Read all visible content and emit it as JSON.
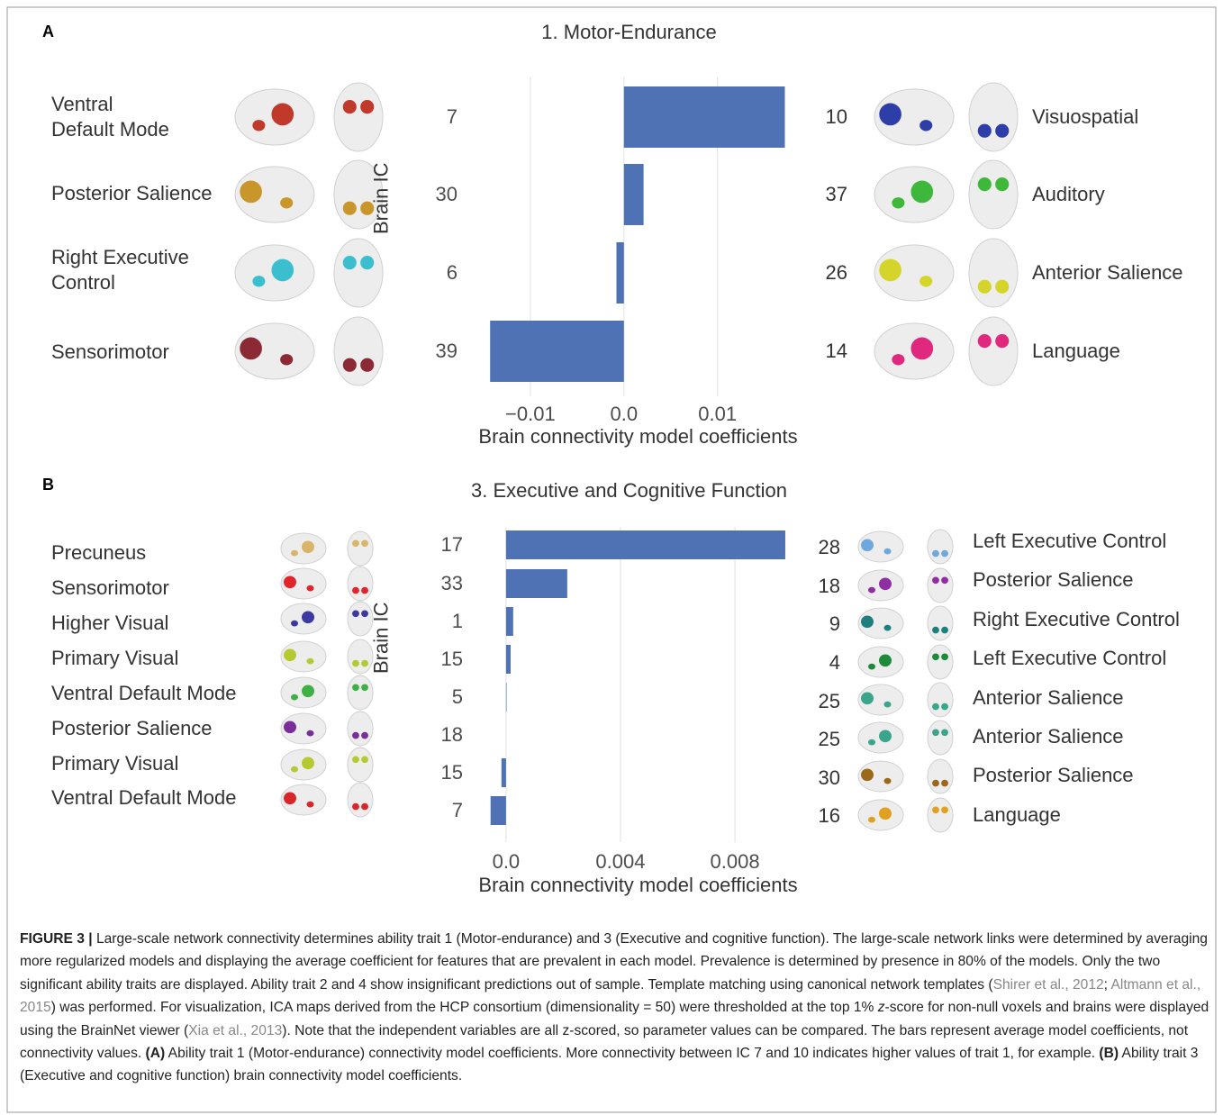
{
  "chart_data": [
    {
      "type": "bar",
      "orientation": "horizontal",
      "panel_label": "A",
      "title": "1. Motor-Endurance",
      "ylabel": "Brain IC",
      "xlabel": "Brain connectivity model coefficients",
      "categories": [
        "7",
        "30",
        "6",
        "39"
      ],
      "values": [
        0.0172,
        0.0021,
        -0.0008,
        -0.0143
      ],
      "color": "#4f72b5",
      "xlim": [
        -0.0174,
        0.0185
      ],
      "xticks": [
        {
          "value": -0.01,
          "label": "−0.01"
        },
        {
          "value": 0,
          "label": "0.0"
        },
        0.01
      ],
      "grid": true,
      "left_networks": [
        "Ventral\nDefault Mode",
        "Posterior Salience",
        "Right Executive\nControl",
        "Sensorimotor"
      ],
      "right_ics": [
        "10",
        "37",
        "26",
        "14"
      ],
      "right_networks": [
        "Visuospatial",
        "Auditory",
        "Anterior Salience",
        "Language"
      ]
    },
    {
      "type": "bar",
      "orientation": "horizontal",
      "panel_label": "B",
      "title": "3. Executive and Cognitive Function",
      "ylabel": "Brain IC",
      "xlabel": "Brain connectivity model coefficients",
      "categories": [
        "17",
        "33",
        "1",
        "15",
        "5",
        "18",
        "15",
        "7"
      ],
      "values": [
        0.00976,
        0.00214,
        0.00025,
        0.00016,
        2e-05,
        0,
        -0.00016,
        -0.00054
      ],
      "color": "#4f72b5",
      "xlim": [
        -0.00157,
        0.01017
      ],
      "xticks": [
        {
          "value": 0,
          "label": "0.0"
        },
        0.004,
        0.008
      ],
      "grid": true,
      "left_networks": [
        "Precuneus",
        "Sensorimotor",
        "Higher Visual",
        "Primary Visual",
        "Ventral Default Mode",
        "Posterior Salience",
        "Primary Visual",
        "Ventral Default Mode"
      ],
      "right_ics": [
        "28",
        "18",
        "9",
        "4",
        "25",
        "25",
        "30",
        "16"
      ],
      "right_networks": [
        "Left Executive Control",
        "Posterior Salience",
        "Right Executive Control",
        "Left Executive Control",
        "Anterior Salience",
        "Anterior Salience",
        "Posterior Salience",
        "Language"
      ]
    }
  ],
  "caption": {
    "parts": [
      "FIGURE 3 |",
      " Large-scale network connectivity determines ability trait 1 (Motor-endurance) and 3 (Executive and cognitive function). The large-scale network links were determined by averaging more regularized models and displaying the average coefficient for features that are prevalent in each model. Prevalence is determined by presence in 80% of the models. Only the two significant ability traits are displayed. Ability trait 2 and 4 show insignificant predictions out of sample. Template matching using canonical network templates (",
      "Shirer et al., 2012",
      "; ",
      "Altmann et al., 2015",
      ") was performed. For visualization, ICA maps derived from the HCP consortium (dimensionality = 50) were thresholded at the top 1% ",
      "z",
      "-score for non-null voxels and brains were displayed using the BrainNet viewer (",
      "Xia et al., 2013",
      "). Note that the independent variables are all z-scored, so parameter values can be compared. The bars represent average model coefficients, not connectivity values. ",
      "(A)",
      " Ability trait 1 (Motor-endurance) connectivity model coefficients. More connectivity between IC 7 and 10 indicates higher values of trait 1, for example. ",
      "(B)",
      " Ability trait 3 (Executive and cognitive function) brain connectivity model coefficients."
    ]
  }
}
